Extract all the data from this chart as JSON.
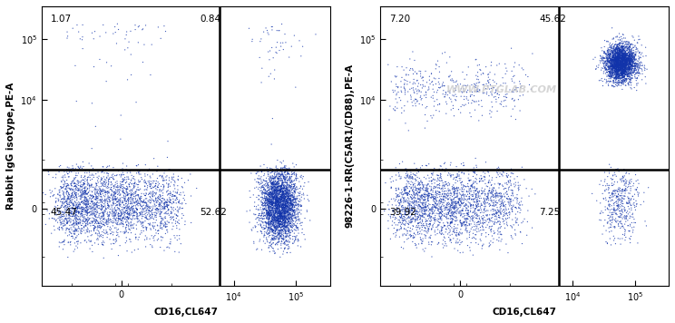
{
  "panel1": {
    "ylabel": "Rabbit IgG isotype,PE-A",
    "xlabel": "CD16,CL647",
    "quadrant_labels": [
      "1.07",
      "0.84",
      "45.47",
      "52.62"
    ],
    "gate_x": 6000,
    "gate_y": 700
  },
  "panel2": {
    "ylabel": "98226-1-RR(C5AR1/CD88),PE-A",
    "xlabel": "CD16,CL647",
    "quadrant_labels": [
      "7.20",
      "45.62",
      "39.92",
      "7.25"
    ],
    "gate_x": 6000,
    "gate_y": 700,
    "watermark": "WWW.PTGLAB.COM"
  },
  "xlim": [
    -3000,
    350000
  ],
  "ylim": [
    -3000,
    350000
  ],
  "linthresh": 500,
  "quadrant_label_fontsize": 7.5,
  "axis_label_fontsize": 7.5,
  "tick_label_fontsize": 7
}
